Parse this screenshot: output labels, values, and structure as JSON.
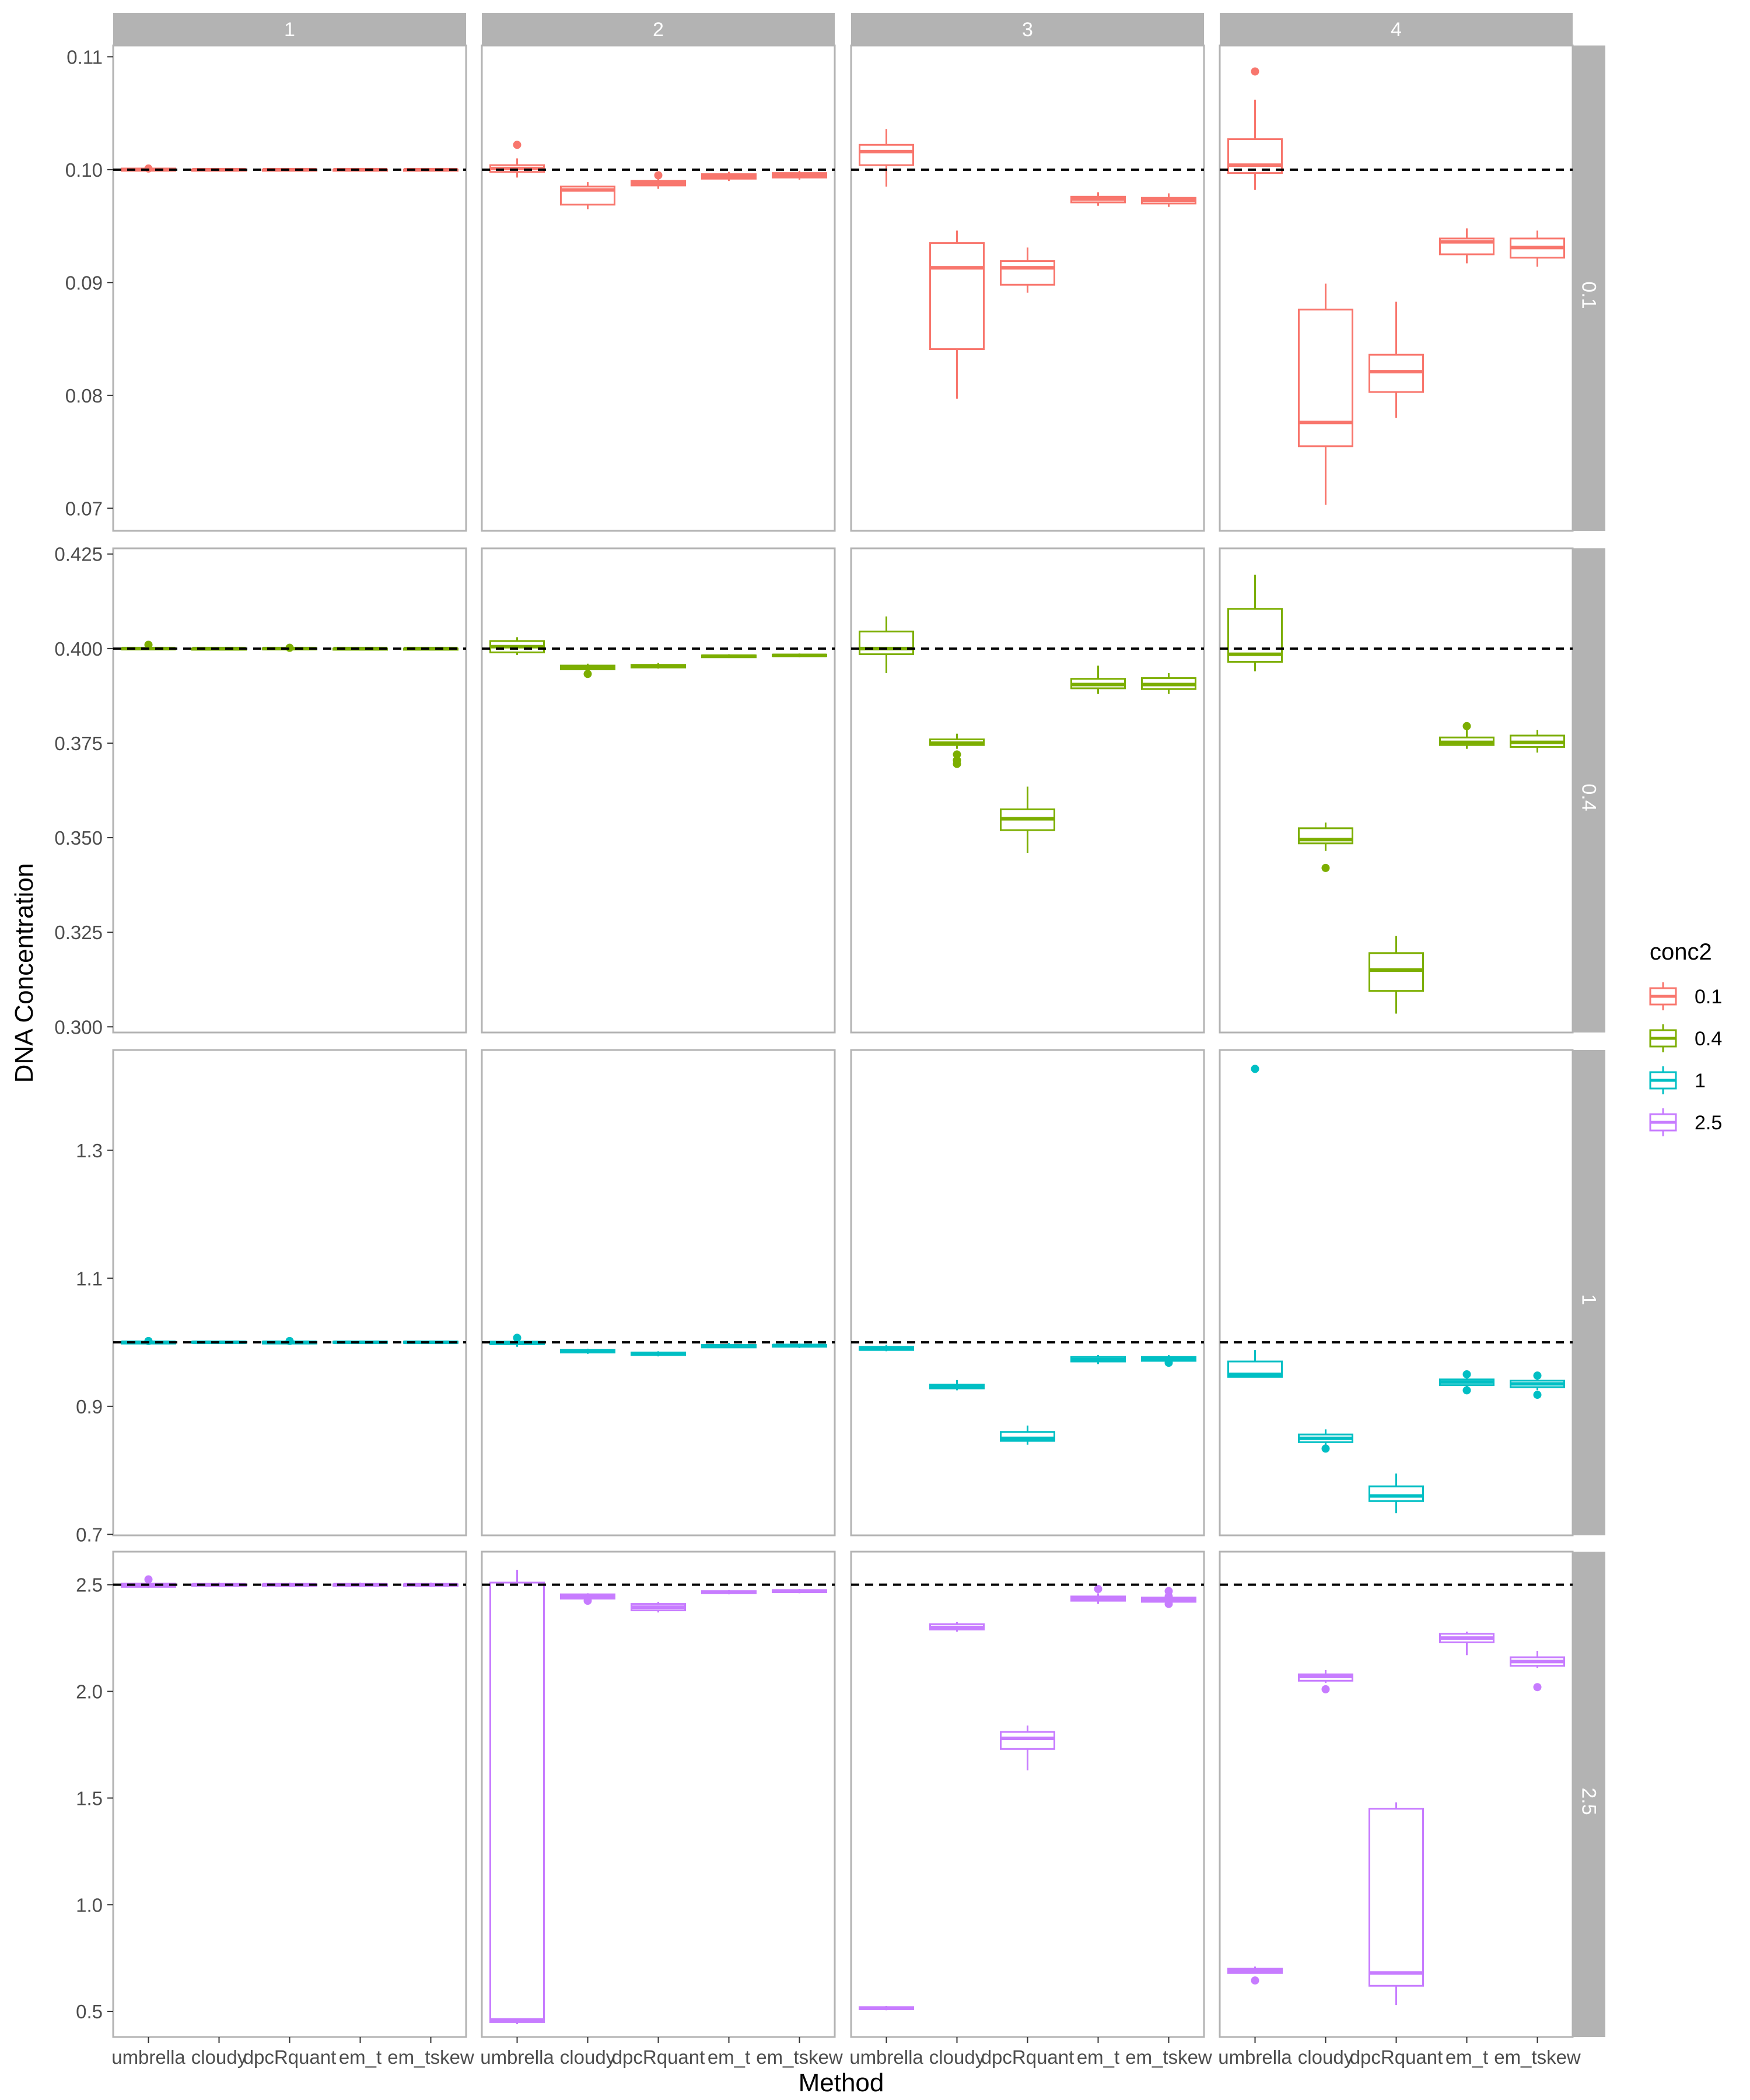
{
  "chart_data": {
    "type": "boxplot",
    "xlabel": "Method",
    "ylabel": "DNA Concentration",
    "legend_title": "conc2",
    "legend_position": "right",
    "categories": [
      "umbrella",
      "cloudy",
      "dpcRquant",
      "em_t",
      "em_tskew"
    ],
    "col_facets": [
      "1",
      "2",
      "3",
      "4"
    ],
    "legend": [
      {
        "label": "0.1",
        "color": "#F8766D"
      },
      {
        "label": "0.4",
        "color": "#7CAE00"
      },
      {
        "label": "1",
        "color": "#00BFC4"
      },
      {
        "label": "2.5",
        "color": "#C77CFF"
      }
    ],
    "rows": [
      {
        "label": "0.1",
        "color": "#F8766D",
        "ylim": [
          0.068,
          0.111
        ],
        "reference": 0.1,
        "ticks": [
          0.07,
          0.08,
          0.09,
          0.1,
          0.11
        ],
        "tick_labels": [
          "0.07",
          "0.08",
          "0.09",
          "0.10",
          "0.11"
        ],
        "panels": [
          [
            [
              0.0998,
              0.0999,
              0.1,
              0.1001,
              0.1002,
              [
                0.1001
              ]
            ],
            [
              0.0999,
              0.0999,
              0.1,
              0.1,
              0.1001,
              []
            ],
            [
              0.0999,
              0.0999,
              0.1,
              0.1,
              0.1001,
              []
            ],
            [
              0.0999,
              0.0999,
              0.1,
              0.1,
              0.1001,
              []
            ],
            [
              0.0999,
              0.0999,
              0.1,
              0.1,
              0.1001,
              []
            ]
          ],
          [
            [
              0.0993,
              0.0998,
              0.1001,
              0.1004,
              0.101,
              [
                0.1022
              ]
            ],
            [
              0.0965,
              0.0969,
              0.0982,
              0.0985,
              0.0989,
              []
            ],
            [
              0.0983,
              0.0986,
              0.0988,
              0.099,
              0.0993,
              [
                0.0995
              ]
            ],
            [
              0.099,
              0.0992,
              0.0994,
              0.0996,
              0.0998,
              []
            ],
            [
              0.0991,
              0.0993,
              0.0995,
              0.0997,
              0.0999,
              []
            ]
          ],
          [
            [
              0.0985,
              0.1004,
              0.1016,
              0.1022,
              0.1036,
              []
            ],
            [
              0.0797,
              0.0841,
              0.0913,
              0.0935,
              0.0946,
              []
            ],
            [
              0.0891,
              0.0898,
              0.0913,
              0.0919,
              0.0931,
              []
            ],
            [
              0.0968,
              0.0971,
              0.0974,
              0.0976,
              0.098,
              []
            ],
            [
              0.0967,
              0.097,
              0.0973,
              0.0975,
              0.0979,
              []
            ]
          ],
          [
            [
              0.0982,
              0.0997,
              0.1004,
              0.1027,
              0.1062,
              [
                0.1087
              ]
            ],
            [
              0.0703,
              0.0755,
              0.0776,
              0.0876,
              0.0899,
              []
            ],
            [
              0.078,
              0.0803,
              0.0821,
              0.0836,
              0.0883,
              []
            ],
            [
              0.0917,
              0.0925,
              0.0936,
              0.0939,
              0.0948,
              []
            ],
            [
              0.0914,
              0.0922,
              0.0931,
              0.0939,
              0.0946,
              []
            ]
          ]
        ]
      },
      {
        "label": "0.4",
        "color": "#7CAE00",
        "ylim": [
          0.2985,
          0.4265
        ],
        "reference": 0.4,
        "ticks": [
          0.3,
          0.325,
          0.35,
          0.375,
          0.4,
          0.425
        ],
        "tick_labels": [
          "0.300",
          "0.325",
          "0.350",
          "0.375",
          "0.400",
          "0.425"
        ],
        "panels": [
          [
            [
              0.3997,
              0.3998,
              0.4,
              0.4001,
              0.4003,
              [
                0.401
              ]
            ],
            [
              0.3998,
              0.3999,
              0.4,
              0.4,
              0.4002,
              []
            ],
            [
              0.3997,
              0.3998,
              0.4,
              0.4001,
              0.4003,
              [
                0.4002
              ]
            ],
            [
              0.3998,
              0.3999,
              0.4,
              0.4,
              0.4002,
              []
            ],
            [
              0.3998,
              0.3999,
              0.4,
              0.4,
              0.4002,
              []
            ]
          ],
          [
            [
              0.3983,
              0.399,
              0.4005,
              0.402,
              0.403,
              []
            ],
            [
              0.394,
              0.3945,
              0.395,
              0.3955,
              0.396,
              [
                0.3933
              ]
            ],
            [
              0.3947,
              0.395,
              0.3953,
              0.3957,
              0.3962,
              []
            ],
            [
              0.3975,
              0.3977,
              0.398,
              0.3982,
              0.3985,
              []
            ],
            [
              0.3977,
              0.398,
              0.3982,
              0.3984,
              0.3987,
              []
            ]
          ],
          [
            [
              0.3935,
              0.3985,
              0.4,
              0.4045,
              0.4085,
              []
            ],
            [
              0.3735,
              0.3745,
              0.375,
              0.376,
              0.3775,
              [
                0.372,
                0.3705,
                0.3695
              ]
            ],
            [
              0.346,
              0.352,
              0.355,
              0.3575,
              0.3635,
              []
            ],
            [
              0.388,
              0.3895,
              0.3905,
              0.392,
              0.3955,
              []
            ],
            [
              0.388,
              0.3893,
              0.3905,
              0.3922,
              0.3935,
              []
            ]
          ],
          [
            [
              0.394,
              0.3965,
              0.3985,
              0.4105,
              0.4195,
              []
            ],
            [
              0.3465,
              0.3485,
              0.3495,
              0.3525,
              0.354,
              [
                0.342
              ]
            ],
            [
              0.3035,
              0.3095,
              0.315,
              0.3195,
              0.324,
              []
            ],
            [
              0.3735,
              0.3745,
              0.3752,
              0.3765,
              0.3785,
              [
                0.3795
              ]
            ],
            [
              0.3725,
              0.374,
              0.3752,
              0.377,
              0.3785,
              []
            ]
          ]
        ]
      },
      {
        "label": "1",
        "color": "#00BFC4",
        "ylim": [
          0.6985,
          1.4565
        ],
        "reference": 1.0,
        "ticks": [
          0.7,
          0.9,
          1.1,
          1.3
        ],
        "tick_labels": [
          "0.7",
          "0.9",
          "1.1",
          "1.3"
        ],
        "panels": [
          [
            [
              0.997,
              0.998,
              1.0,
              1.001,
              1.003,
              [
                1.002
              ]
            ],
            [
              0.998,
              0.999,
              1.0,
              1.001,
              1.002,
              []
            ],
            [
              0.997,
              0.998,
              1.0,
              1.001,
              1.003,
              [
                1.002
              ]
            ],
            [
              0.998,
              0.999,
              1.0,
              1.001,
              1.002,
              []
            ],
            [
              0.998,
              0.999,
              1.0,
              1.001,
              1.002,
              []
            ]
          ],
          [
            [
              0.993,
              0.997,
              0.999,
              1.001,
              1.004,
              [
                1.007
              ]
            ],
            [
              0.982,
              0.984,
              0.986,
              0.988,
              0.99,
              []
            ],
            [
              0.978,
              0.98,
              0.982,
              0.984,
              0.986,
              []
            ],
            [
              0.991,
              0.992,
              0.994,
              0.996,
              0.999,
              []
            ],
            [
              0.991,
              0.993,
              0.995,
              0.996,
              0.998,
              []
            ]
          ],
          [
            [
              0.986,
              0.988,
              0.99,
              0.993,
              0.996,
              []
            ],
            [
              0.925,
              0.928,
              0.931,
              0.934,
              0.941,
              []
            ],
            [
              0.84,
              0.846,
              0.85,
              0.86,
              0.87,
              []
            ],
            [
              0.966,
              0.97,
              0.973,
              0.977,
              0.98,
              []
            ],
            [
              0.969,
              0.971,
              0.974,
              0.977,
              0.98,
              [
                0.968
              ]
            ]
          ],
          [
            [
              0.946,
              0.946,
              0.95,
              0.97,
              0.988,
              [
                1.427
              ]
            ],
            [
              0.838,
              0.844,
              0.85,
              0.856,
              0.864,
              [
                0.834
              ]
            ],
            [
              0.733,
              0.752,
              0.76,
              0.775,
              0.795,
              []
            ],
            [
              0.925,
              0.933,
              0.938,
              0.942,
              0.947,
              [
                0.95,
                0.925
              ]
            ],
            [
              0.925,
              0.93,
              0.935,
              0.94,
              0.945,
              [
                0.948,
                0.918
              ]
            ]
          ]
        ]
      },
      {
        "label": "2.5",
        "color": "#C77CFF",
        "ylim": [
          0.38,
          2.655
        ],
        "reference": 2.5,
        "ticks": [
          0.5,
          1.0,
          1.5,
          2.0,
          2.5
        ],
        "tick_labels": [
          "0.5",
          "1.0",
          "1.5",
          "2.0",
          "2.5"
        ],
        "panels": [
          [
            [
              2.485,
              2.49,
              2.5,
              2.505,
              2.515,
              [
                2.525
              ]
            ],
            [
              2.49,
              2.495,
              2.5,
              2.502,
              2.51,
              []
            ],
            [
              2.49,
              2.495,
              2.5,
              2.502,
              2.51,
              []
            ],
            [
              2.49,
              2.495,
              2.5,
              2.502,
              2.51,
              []
            ],
            [
              2.49,
              2.495,
              2.5,
              2.502,
              2.51,
              []
            ]
          ],
          [
            [
              0.44,
              0.45,
              0.46,
              2.51,
              2.57,
              []
            ],
            [
              2.42,
              2.435,
              2.445,
              2.455,
              2.46,
              [
                2.425
              ]
            ],
            [
              2.37,
              2.38,
              2.395,
              2.41,
              2.42,
              []
            ],
            [
              2.455,
              2.46,
              2.465,
              2.47,
              2.475,
              []
            ],
            [
              2.46,
              2.465,
              2.47,
              2.475,
              2.48,
              []
            ]
          ],
          [
            [
              0.505,
              0.51,
              0.515,
              0.52,
              0.525,
              []
            ],
            [
              2.28,
              2.29,
              2.3,
              2.315,
              2.325,
              []
            ],
            [
              1.63,
              1.73,
              1.78,
              1.81,
              1.84,
              []
            ],
            [
              2.41,
              2.425,
              2.435,
              2.445,
              2.46,
              [
                2.48
              ]
            ],
            [
              2.4,
              2.42,
              2.43,
              2.44,
              2.465,
              [
                2.47,
                2.445,
                2.425,
                2.41
              ]
            ]
          ],
          [
            [
              0.68,
              0.68,
              0.69,
              0.7,
              0.71,
              [
                0.645
              ]
            ],
            [
              2.04,
              2.05,
              2.07,
              2.08,
              2.1,
              [
                2.01
              ]
            ],
            [
              0.53,
              0.62,
              0.68,
              1.45,
              1.48,
              []
            ],
            [
              2.17,
              2.23,
              2.25,
              2.27,
              2.28,
              []
            ],
            [
              2.11,
              2.12,
              2.14,
              2.16,
              2.19,
              [
                2.02
              ]
            ]
          ]
        ]
      }
    ]
  }
}
